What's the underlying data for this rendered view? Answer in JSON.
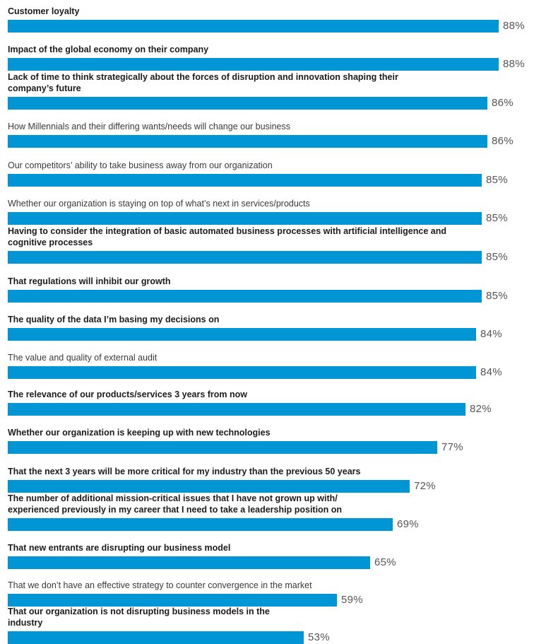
{
  "chart_data": {
    "type": "bar",
    "orientation": "horizontal",
    "bar_color": "#0096d6",
    "xlim": [
      0,
      88
    ],
    "grid": false,
    "categories": [
      {
        "label": "Customer loyalty",
        "value": 88,
        "value_label": "88%",
        "bold": true
      },
      {
        "label": "Impact of the global economy on their company",
        "value": 88,
        "value_label": "88%",
        "bold": true
      },
      {
        "label": "Lack of time to think strategically about the forces of disruption and innovation shaping their company’s future",
        "value": 86,
        "value_label": "86%",
        "bold": true
      },
      {
        "label": "How Millennials and their differing wants/needs will change our business",
        "value": 86,
        "value_label": "86%",
        "bold": false
      },
      {
        "label": "Our competitors’ ability to take business away from our organization",
        "value": 85,
        "value_label": "85%",
        "bold": false
      },
      {
        "label": "Whether our organization is staying on top of what’s next in services/products",
        "value": 85,
        "value_label": "85%",
        "bold": false
      },
      {
        "label": "Having to consider the integration of basic automated business processes with artificial intelligence and cognitive processes",
        "value": 85,
        "value_label": "85%",
        "bold": true
      },
      {
        "label": "That regulations will inhibit our growth",
        "value": 85,
        "value_label": "85%",
        "bold": true
      },
      {
        "label": "The quality of the data I’m basing my decisions on",
        "value": 84,
        "value_label": "84%",
        "bold": true
      },
      {
        "label": "The value and quality of external audit",
        "value": 84,
        "value_label": "84%",
        "bold": false
      },
      {
        "label": "The relevance of our products/services 3 years from now",
        "value": 82,
        "value_label": "82%",
        "bold": true
      },
      {
        "label": "Whether our organization is keeping up with new technologies",
        "value": 77,
        "value_label": "77%",
        "bold": true
      },
      {
        "label": "That the next 3 years will be more critical for my industry than the previous 50 years",
        "value": 72,
        "value_label": "72%",
        "bold": true
      },
      {
        "label": "The number of additional mission-critical issues that I have not grown up with/ experienced previously in my career that I need to take a leadership position on",
        "value": 69,
        "value_label": "69%",
        "bold": true
      },
      {
        "label": "That new entrants are disrupting our business model",
        "value": 65,
        "value_label": "65%",
        "bold": true
      },
      {
        "label": "That we don’t have an effective strategy to counter convergence in the market",
        "value": 59,
        "value_label": "59%",
        "bold": false
      },
      {
        "label": "That our organization is not disrupting business models in the industry",
        "value": 53,
        "value_label": "53%",
        "bold": true
      }
    ]
  }
}
